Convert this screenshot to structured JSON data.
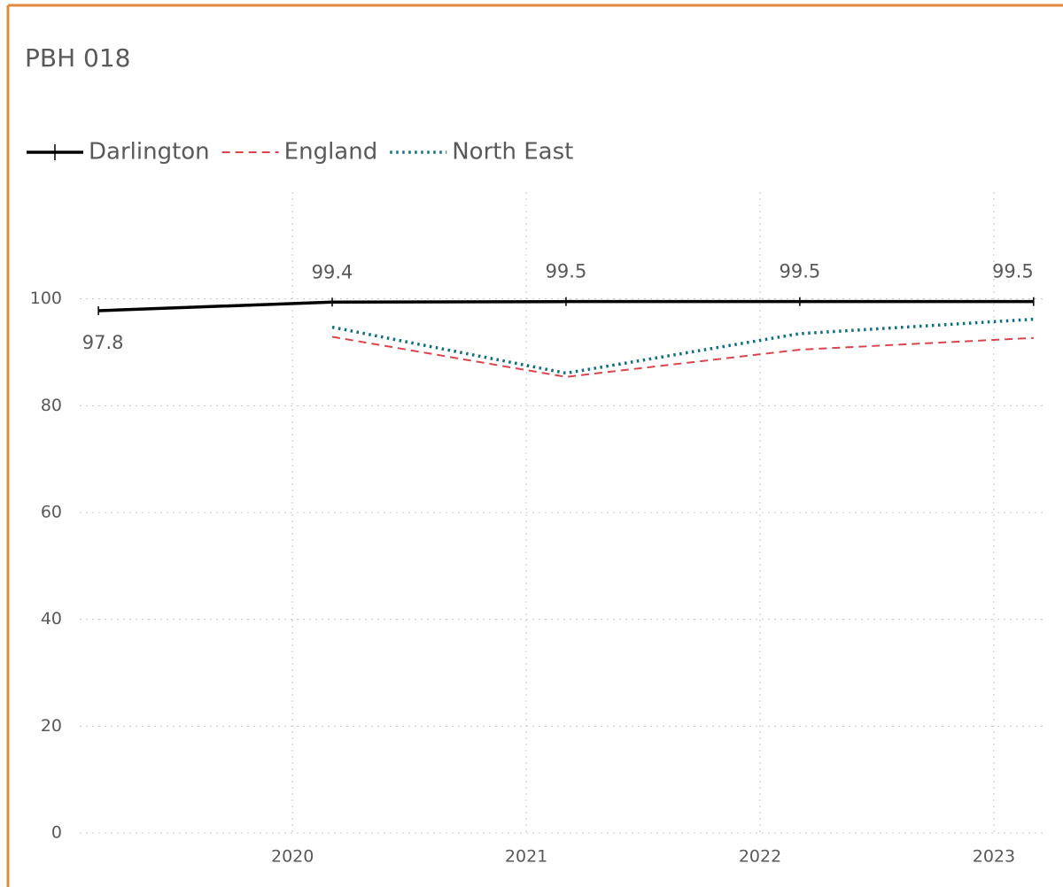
{
  "chart_data": {
    "type": "line",
    "title": "PBH 018",
    "x": [
      2019.17,
      2020.17,
      2021.17,
      2022.17,
      2023.17
    ],
    "series": [
      {
        "name": "Darlington",
        "color": "#000000",
        "line_style": "solid",
        "marker": "plus",
        "values": [
          97.8,
          99.4,
          99.5,
          99.5,
          99.5
        ],
        "data_labels": true
      },
      {
        "name": "England",
        "color": "#d9444e",
        "line_style": "dashed",
        "values": [
          null,
          92.9,
          85.4,
          90.5,
          92.7
        ]
      },
      {
        "name": "North East",
        "color": "#0e6f80",
        "line_style": "dotted",
        "values": [
          null,
          94.7,
          86.1,
          93.5,
          96.2
        ]
      }
    ],
    "xlim": [
      2019.09,
      2023.22
    ],
    "xticks": [
      2020,
      2021,
      2022,
      2023
    ],
    "ylim": [
      0,
      120
    ],
    "yticks": [
      0,
      20,
      40,
      60,
      80,
      100
    ],
    "grid": true,
    "legend": "top-left"
  }
}
